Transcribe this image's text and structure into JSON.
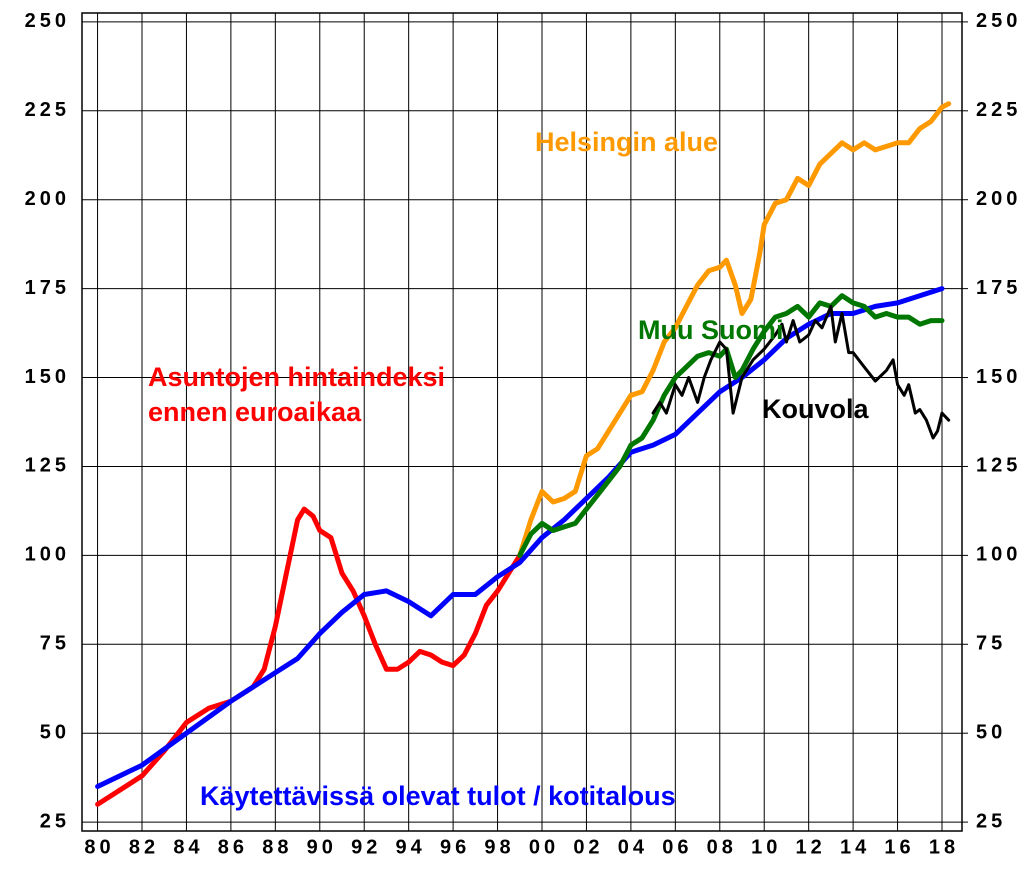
{
  "chart_data": {
    "type": "line",
    "xlim": [
      1979.3,
      2018.9
    ],
    "xticks": [
      {
        "value": 1980,
        "label": "80"
      },
      {
        "value": 1982,
        "label": "82"
      },
      {
        "value": 1984,
        "label": "84"
      },
      {
        "value": 1986,
        "label": "86"
      },
      {
        "value": 1988,
        "label": "88"
      },
      {
        "value": 1990,
        "label": "90"
      },
      {
        "value": 1992,
        "label": "92"
      },
      {
        "value": 1994,
        "label": "94"
      },
      {
        "value": 1996,
        "label": "96"
      },
      {
        "value": 1998,
        "label": "98"
      },
      {
        "value": 2000,
        "label": "00"
      },
      {
        "value": 2002,
        "label": "02"
      },
      {
        "value": 2004,
        "label": "04"
      },
      {
        "value": 2006,
        "label": "06"
      },
      {
        "value": 2008,
        "label": "08"
      },
      {
        "value": 2010,
        "label": "10"
      },
      {
        "value": 2012,
        "label": "12"
      },
      {
        "value": 2014,
        "label": "14"
      },
      {
        "value": 2016,
        "label": "16"
      },
      {
        "value": 2018,
        "label": "18"
      }
    ],
    "ylim": [
      22.5,
      252.5
    ],
    "yticks": [
      25,
      50,
      75,
      100,
      125,
      150,
      175,
      200,
      225,
      250
    ],
    "y2lim": [
      22.5,
      252.5
    ],
    "y2ticks": [
      25,
      50,
      75,
      100,
      125,
      150,
      175,
      200,
      225,
      250
    ],
    "grid": true,
    "series": [
      {
        "name": "Asuntojen hintaindeksi ennen euroaikaa",
        "color": "#ff0000",
        "x": [
          1980,
          1981,
          1982,
          1983,
          1984,
          1985,
          1986,
          1987,
          1987.5,
          1988,
          1988.5,
          1989,
          1989.3,
          1989.7,
          1990,
          1990.5,
          1991,
          1991.5,
          1992,
          1992.5,
          1993,
          1993.5,
          1994,
          1994.5,
          1995,
          1995.5,
          1996,
          1996.5,
          1997,
          1997.5,
          1998,
          1998.5,
          1999
        ],
        "values": [
          30,
          34,
          38,
          45,
          53,
          57,
          59,
          63,
          68,
          80,
          95,
          110,
          113,
          111,
          107,
          105,
          95,
          90,
          83,
          75,
          68,
          68,
          70,
          73,
          72,
          70,
          69,
          72,
          78,
          86,
          90,
          95,
          100
        ]
      },
      {
        "name": "Käytettävissä olevat tulot / kotitalous",
        "color": "#0000ff",
        "x": [
          1980,
          1982,
          1984,
          1986,
          1988,
          1989,
          1990,
          1991,
          1992,
          1993,
          1994,
          1995,
          1996,
          1997,
          1998,
          1999,
          2000,
          2001,
          2002,
          2003,
          2004,
          2005,
          2006,
          2007,
          2008,
          2009,
          2010,
          2011,
          2012,
          2013,
          2014,
          2015,
          2016,
          2017,
          2018
        ],
        "values": [
          35,
          41,
          50,
          59,
          67,
          71,
          78,
          84,
          89,
          90,
          87,
          83,
          89,
          89,
          94,
          98,
          105,
          110,
          116,
          122,
          129,
          131,
          134,
          140,
          146,
          150,
          155,
          161,
          165,
          168,
          168,
          170,
          171,
          173,
          175
        ]
      },
      {
        "name": "Helsingin alue",
        "color": "#ff9900",
        "x": [
          1999,
          1999.5,
          2000,
          2000.5,
          2001,
          2001.5,
          2002,
          2002.5,
          2003,
          2003.5,
          2004,
          2004.5,
          2005,
          2005.5,
          2006,
          2006.5,
          2007,
          2007.5,
          2008,
          2008.3,
          2008.7,
          2009,
          2009.4,
          2009.8,
          2010,
          2010.5,
          2011,
          2011.5,
          2012,
          2012.5,
          2013,
          2013.5,
          2014,
          2014.5,
          2015,
          2015.5,
          2016,
          2016.5,
          2017,
          2017.5,
          2018,
          2018.3
        ],
        "values": [
          100,
          110,
          118,
          115,
          116,
          118,
          128,
          130,
          135,
          140,
          145,
          146,
          152,
          160,
          164,
          170,
          176,
          180,
          181,
          183,
          176,
          168,
          172,
          185,
          193,
          199,
          200,
          206,
          204,
          210,
          213,
          216,
          214,
          216,
          214,
          215,
          216,
          216,
          220,
          222,
          226,
          227
        ]
      },
      {
        "name": "Muu Suomi",
        "color": "#007700",
        "x": [
          1999,
          1999.5,
          2000,
          2000.5,
          2001,
          2001.5,
          2002,
          2002.5,
          2003,
          2003.5,
          2004,
          2004.5,
          2005,
          2005.5,
          2006,
          2006.5,
          2007,
          2007.5,
          2008,
          2008.3,
          2008.7,
          2009,
          2009.5,
          2010,
          2010.5,
          2011,
          2011.5,
          2012,
          2012.5,
          2013,
          2013.5,
          2014,
          2014.5,
          2015,
          2015.5,
          2016,
          2016.5,
          2017,
          2017.5,
          2018
        ],
        "values": [
          100,
          106,
          109,
          107,
          108,
          109,
          113,
          117,
          121,
          125,
          131,
          133,
          138,
          145,
          150,
          153,
          156,
          157,
          156,
          158,
          150,
          152,
          158,
          163,
          167,
          168,
          170,
          167,
          171,
          170,
          173,
          171,
          170,
          167,
          168,
          167,
          167,
          165,
          166,
          166
        ]
      },
      {
        "name": "Kouvola",
        "color": "#000000",
        "x": [
          2005,
          2005.3,
          2005.6,
          2006,
          2006.3,
          2006.6,
          2007,
          2007.3,
          2007.6,
          2008,
          2008.3,
          2008.6,
          2009,
          2009.5,
          2010,
          2010.5,
          2010.8,
          2011,
          2011.3,
          2011.6,
          2012,
          2012.3,
          2012.6,
          2013,
          2013.2,
          2013.5,
          2013.8,
          2014,
          2014.5,
          2015,
          2015.5,
          2015.8,
          2016,
          2016.3,
          2016.5,
          2016.8,
          2017,
          2017.3,
          2017.6,
          2017.8,
          2018,
          2018.3
        ],
        "values": [
          140,
          143,
          140,
          148,
          145,
          150,
          143,
          150,
          155,
          160,
          158,
          140,
          150,
          155,
          158,
          162,
          165,
          160,
          166,
          160,
          162,
          166,
          164,
          170,
          160,
          168,
          157,
          157,
          153,
          149,
          152,
          155,
          148,
          145,
          148,
          140,
          141,
          138,
          133,
          135,
          140,
          138
        ]
      }
    ]
  }
}
